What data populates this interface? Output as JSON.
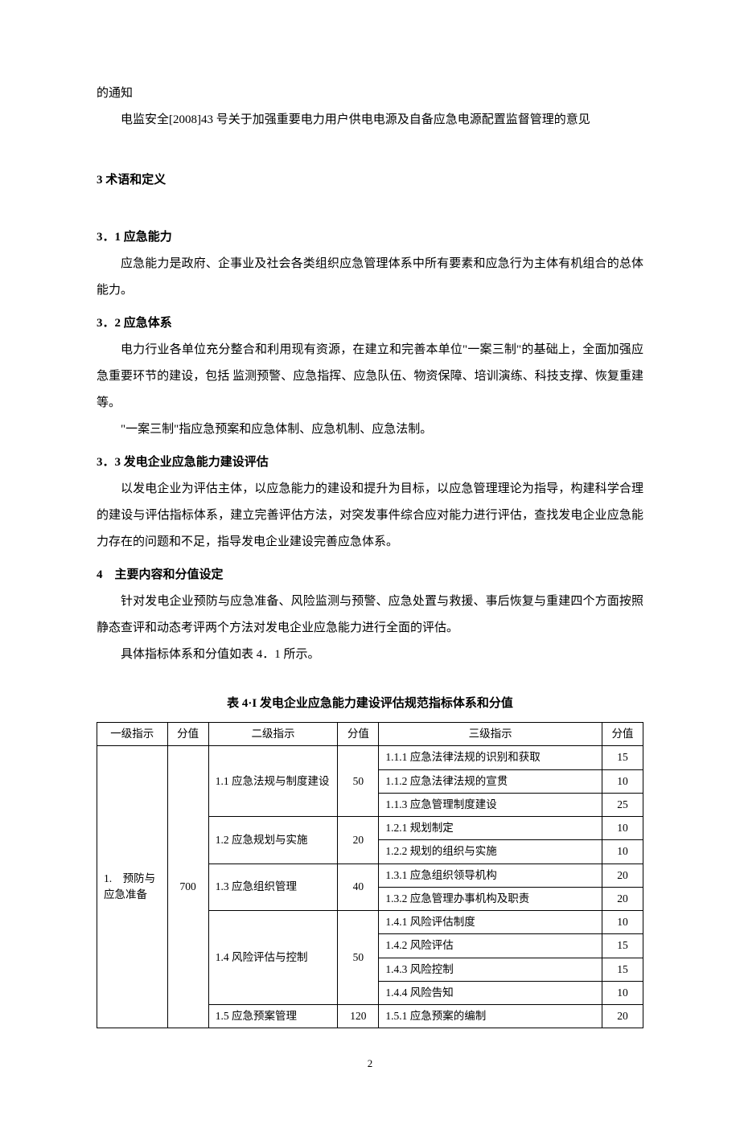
{
  "intro": {
    "line1": "的通知",
    "line2": "电监安全[2008]43 号关于加强重要电力用户供电电源及自备应急电源配置监督管理的意见"
  },
  "section3": {
    "heading": "3 术语和定义",
    "sub1": {
      "heading": "3．1 应急能力",
      "body": "应急能力是政府、企事业及社会各类组织应急管理体系中所有要素和应急行为主体有机组合的总体能力。"
    },
    "sub2": {
      "heading": "3．2 应急体系",
      "body1": "电力行业各单位充分整合和利用现有资源，在建立和完善本单位\"一案三制\"的基础上，全面加强应急重要环节的建设，包括 监测预警、应急指挥、应急队伍、物资保障、培训演练、科技支撑、恢复重建等。",
      "body2": "\"一案三制\"指应急预案和应急体制、应急机制、应急法制。"
    },
    "sub3": {
      "heading": "3．3 发电企业应急能力建设评估",
      "body": "以发电企业为评估主体，以应急能力的建设和提升为目标，以应急管理理论为指导，构建科学合理的建设与评估指标体系，建立完善评估方法，对突发事件综合应对能力进行评估，查找发电企业应急能力存在的问题和不足，指导发电企业建设完善应急体系。"
    }
  },
  "section4": {
    "heading": "4　主要内容和分值设定",
    "body1": "针对发电企业预防与应急准备、风险监测与预警、应急处置与救援、事后恢复与重建四个方面按照静态查评和动态考评两个方法对发电企业应急能力进行全面的评估。",
    "body2": "具体指标体系和分值如表 4．1 所示。"
  },
  "table": {
    "title": "表 4·I 发电企业应急能力建设评估规范指标体系和分值",
    "headers": {
      "l1": "一级指示",
      "s1": "分值",
      "l2": "二级指示",
      "s2": "分值",
      "l3": "三级指示",
      "s3": "分值"
    },
    "level1": {
      "label": "1.　预防与应急准备",
      "score": "700"
    },
    "level2": {
      "r1": {
        "label": "1.1 应急法规与制度建设",
        "score": "50"
      },
      "r2": {
        "label": "1.2 应急规划与实施",
        "score": "20"
      },
      "r3": {
        "label": "1.3 应急组织管理",
        "score": "40"
      },
      "r4": {
        "label": "1.4 风险评估与控制",
        "score": "50"
      },
      "r5": {
        "label": "1.5 应急预案管理",
        "score": "120"
      }
    },
    "level3": {
      "r111": {
        "label": "1.1.1 应急法律法规的识别和获取",
        "score": "15"
      },
      "r112": {
        "label": "1.1.2 应急法律法规的宣贯",
        "score": "10"
      },
      "r113": {
        "label": "1.1.3 应急管理制度建设",
        "score": "25"
      },
      "r121": {
        "label": "1.2.1 规划制定",
        "score": "10"
      },
      "r122": {
        "label": "1.2.2 规划的组织与实施",
        "score": "10"
      },
      "r131": {
        "label": "1.3.1 应急组织领导机构",
        "score": "20"
      },
      "r132": {
        "label": "1.3.2 应急管理办事机构及职责",
        "score": "20"
      },
      "r141": {
        "label": "1.4.1 风险评估制度",
        "score": "10"
      },
      "r142": {
        "label": "1.4.2 风险评估",
        "score": "15"
      },
      "r143": {
        "label": "1.4.3 风险控制",
        "score": "15"
      },
      "r144": {
        "label": "1.4.4 风险告知",
        "score": "10"
      },
      "r151": {
        "label": "1.5.1 应急预案的编制",
        "score": "20"
      }
    }
  },
  "pageNumber": "2"
}
